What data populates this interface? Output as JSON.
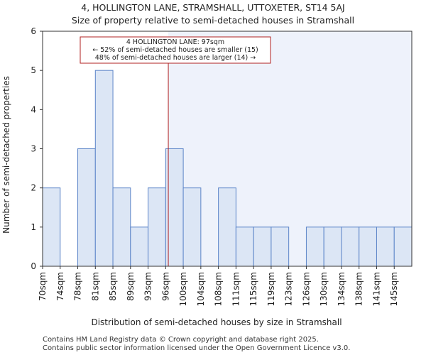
{
  "chart_data": {
    "type": "bar",
    "title_line1": "4, HOLLINGTON LANE, STRAMSHALL, UTTOXETER, ST14 5AJ",
    "title_line2": "Size of property relative to semi-detached houses in Stramshall",
    "xlabel": "Distribution of semi-detached houses by size in Stramshall",
    "ylabel": "Number of semi-detached properties",
    "categories": [
      "70sqm",
      "74sqm",
      "78sqm",
      "81sqm",
      "85sqm",
      "89sqm",
      "93sqm",
      "96sqm",
      "100sqm",
      "104sqm",
      "108sqm",
      "111sqm",
      "115sqm",
      "119sqm",
      "123sqm",
      "126sqm",
      "130sqm",
      "134sqm",
      "138sqm",
      "141sqm",
      "145sqm"
    ],
    "values": [
      2,
      0,
      3,
      5,
      2,
      1,
      2,
      3,
      2,
      0,
      2,
      1,
      1,
      1,
      0,
      1,
      1,
      1,
      1,
      1,
      1
    ],
    "ylim": [
      0,
      6
    ],
    "yticks": [
      0,
      1,
      2,
      3,
      4,
      5,
      6
    ],
    "property_bin_index": 7.15,
    "property_line_color": "#b22222",
    "bar_fill_color": "#dce6f5",
    "bar_edge_color": "#5b84c8",
    "highlight_bg_color": "#eef2fb",
    "annotation": {
      "line1": "4 HOLLINGTON LANE: 97sqm",
      "line2": "← 52% of semi-detached houses are smaller (15)",
      "line3": "48% of semi-detached houses are larger (14) →"
    }
  },
  "footer": {
    "line1": "Contains HM Land Registry data © Crown copyright and database right 2025.",
    "line2": "Contains public sector information licensed under the Open Government Licence v3.0."
  }
}
